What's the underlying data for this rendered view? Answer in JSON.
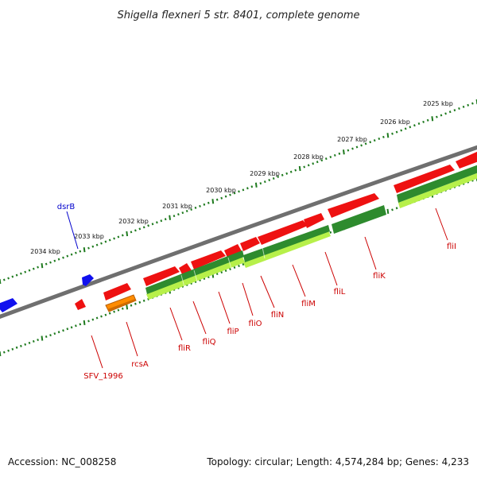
{
  "title": "Shigella flexneri 5 str. 8401, complete genome",
  "colors": {
    "backbone": "#7a7a7a",
    "tick": "#1e7a1e",
    "gene_forward": "#ee1111",
    "gene_reverse": "#1010ee",
    "gene_orange": "#ff8c00",
    "cds_dark": "#2e8b2e",
    "cds_light": "#b7f04a",
    "label_red": "#cc0000",
    "label_blue": "#0000cc"
  },
  "tick_labels": [
    "2025 kbp",
    "2026 kbp",
    "2027 kbp",
    "2028 kbp",
    "2029 kbp",
    "2030 kbp",
    "2031 kbp",
    "2032 kbp",
    "2033 kbp",
    "2034 kbp"
  ],
  "gene_labels": [
    {
      "name": "dsrB",
      "color": "blue"
    },
    {
      "name": "SFV_1996",
      "color": "red"
    },
    {
      "name": "rcsA",
      "color": "red"
    },
    {
      "name": "fliR",
      "color": "red"
    },
    {
      "name": "fliQ",
      "color": "red"
    },
    {
      "name": "fliP",
      "color": "red"
    },
    {
      "name": "fliO",
      "color": "red"
    },
    {
      "name": "fliN",
      "color": "red"
    },
    {
      "name": "fliM",
      "color": "red"
    },
    {
      "name": "fliL",
      "color": "red"
    },
    {
      "name": "fliK",
      "color": "red"
    },
    {
      "name": "fliI",
      "color": "red"
    }
  ],
  "footer": {
    "accession": "Accession: NC_008258",
    "summary": "Topology: circular; Length: 4,574,284 bp; Genes: 4,233"
  }
}
